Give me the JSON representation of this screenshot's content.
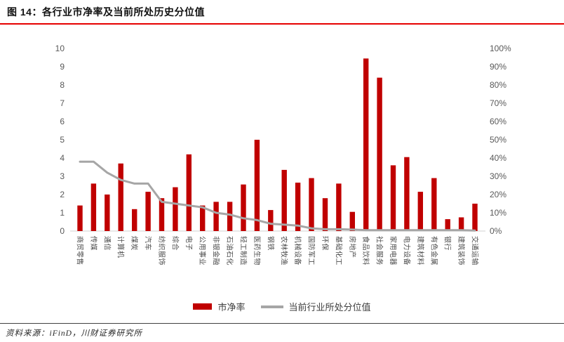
{
  "header": {
    "title": "图 14：各行业市净率及当前所处历史分位值"
  },
  "chart_data": {
    "type": "bar",
    "title": "各行业市净率及当前所处历史分位值",
    "categories": [
      "商贸零售",
      "传媒",
      "通信",
      "计算机",
      "煤炭",
      "汽车",
      "纺织服饰",
      "综合",
      "电子",
      "公用事业",
      "非银金融",
      "石油石化",
      "轻工制造",
      "医药生物",
      "钢铁",
      "农林牧渔",
      "机械设备",
      "国防军工",
      "环保",
      "基础化工",
      "房地产",
      "食品饮料",
      "社会服务",
      "家用电器",
      "电力设备",
      "建筑材料",
      "有色金属",
      "银行",
      "建筑装饰",
      "交通运输"
    ],
    "series": [
      {
        "name": "市净率",
        "type": "bar",
        "axis": "left",
        "color": "#c00000",
        "values": [
          1.4,
          2.6,
          2.0,
          3.7,
          1.2,
          2.15,
          1.8,
          2.4,
          4.2,
          1.4,
          1.6,
          1.6,
          2.55,
          5.0,
          1.15,
          3.35,
          2.65,
          2.9,
          1.8,
          2.6,
          1.05,
          9.45,
          8.4,
          3.6,
          4.05,
          2.15,
          2.9,
          0.65,
          0.75,
          1.5
        ]
      },
      {
        "name": "当前行业所处分位值",
        "type": "line",
        "axis": "right",
        "unit": "%",
        "color": "#a6a6a6",
        "values": [
          38,
          38,
          32,
          28,
          26,
          26,
          16,
          15,
          14,
          13,
          10,
          9,
          7,
          6,
          4,
          3.5,
          3,
          1.5,
          1,
          1,
          0.8,
          0.5,
          0.5,
          0.5,
          0.5,
          0.5,
          0.5,
          0.5,
          0.5,
          0.3
        ]
      }
    ],
    "left_axis": {
      "min": 0,
      "max": 10,
      "step": 1,
      "ticks": [
        "0",
        "1",
        "2",
        "3",
        "4",
        "5",
        "6",
        "7",
        "8",
        "9",
        "10"
      ]
    },
    "right_axis": {
      "min": 0,
      "max": 100,
      "step": 10,
      "ticks": [
        "0%",
        "10%",
        "20%",
        "30%",
        "40%",
        "50%",
        "60%",
        "70%",
        "80%",
        "90%",
        "100%"
      ]
    },
    "grid": false,
    "legend_position": "bottom"
  },
  "footer": {
    "source_label": "资料来源：iFinD，川财证券研究所"
  },
  "colors": {
    "bar_red": "#c00000",
    "line_gray": "#a6a6a6",
    "rule_red": "#e60000",
    "footer_rule": "#404040",
    "axis_line": "#d9d9d9",
    "tick_text": "#595959"
  }
}
